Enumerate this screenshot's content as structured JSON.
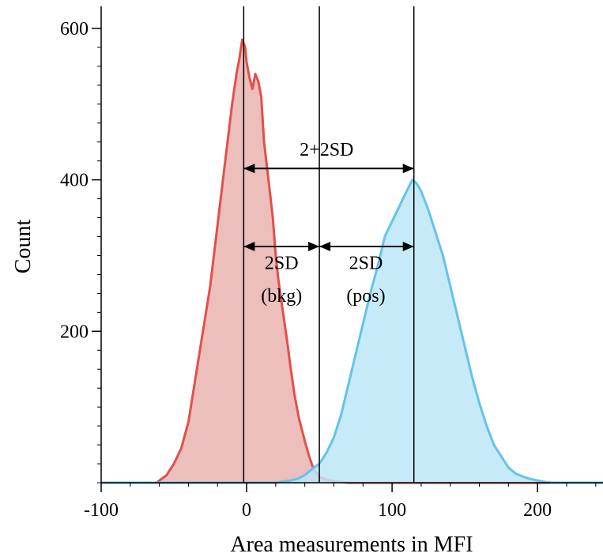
{
  "chart_data": {
    "type": "area",
    "xlabel": "Area measurements in MFI",
    "ylabel": "Count",
    "xlim": [
      -100,
      245
    ],
    "ylim": [
      0,
      625
    ],
    "x_ticks": [
      -100,
      0,
      100,
      200
    ],
    "x_tick_labels": [
      "-100",
      "0",
      "100",
      "200"
    ],
    "y_ticks": [
      200,
      400,
      600
    ],
    "y_tick_labels": [
      "200",
      "400",
      "600"
    ],
    "grid": false,
    "series": [
      {
        "color": "#e2504a",
        "fill": "#e9b3b0",
        "x": [
          -100,
          -62,
          -55,
          -50,
          -45,
          -40,
          -35,
          -30,
          -25,
          -20,
          -15,
          -10,
          -7,
          -5,
          -3,
          -1,
          0,
          2,
          4,
          6,
          8,
          10,
          12,
          15,
          18,
          20,
          22,
          25,
          28,
          30,
          33,
          36,
          40,
          43,
          46,
          50,
          55,
          60,
          65,
          70,
          80,
          100,
          245
        ],
        "y": [
          0,
          0,
          10,
          25,
          45,
          80,
          140,
          200,
          260,
          340,
          420,
          500,
          540,
          560,
          585,
          575,
          555,
          535,
          520,
          540,
          530,
          510,
          450,
          400,
          350,
          300,
          265,
          225,
          185,
          155,
          115,
          85,
          55,
          35,
          18,
          8,
          4,
          2,
          1,
          0,
          0,
          0,
          0
        ]
      },
      {
        "color": "#63c3ec",
        "fill": "#bde6f7",
        "x": [
          -100,
          20,
          30,
          35,
          40,
          45,
          50,
          55,
          60,
          65,
          70,
          75,
          80,
          85,
          90,
          95,
          100,
          105,
          110,
          114,
          117,
          120,
          125,
          130,
          135,
          140,
          145,
          150,
          155,
          160,
          165,
          170,
          175,
          180,
          185,
          190,
          195,
          200,
          205,
          210,
          245
        ],
        "y": [
          0,
          0,
          3,
          5,
          10,
          18,
          25,
          40,
          60,
          90,
          130,
          170,
          210,
          250,
          285,
          325,
          345,
          365,
          385,
          400,
          395,
          385,
          360,
          330,
          300,
          260,
          220,
          180,
          140,
          105,
          75,
          50,
          35,
          20,
          12,
          8,
          5,
          3,
          1,
          0,
          0
        ]
      }
    ],
    "vertical_lines": [
      {
        "x": -2
      },
      {
        "x": 50
      },
      {
        "x": 115
      }
    ],
    "annotations": [
      {
        "label": "2+2SD",
        "arrow_from": -2,
        "arrow_to": 115,
        "y": 415,
        "text_x": 55,
        "text_y": 432
      },
      {
        "label": "2SD",
        "arrow_from": -2,
        "arrow_to": 50,
        "y": 312,
        "text_x": 24,
        "text_y": 282
      },
      {
        "label": "(bkg)",
        "arrow_from": null,
        "arrow_to": null,
        "y": null,
        "text_x": 24,
        "text_y": 239
      },
      {
        "label": "2SD",
        "arrow_from": 50,
        "arrow_to": 115,
        "y": 312,
        "text_x": 82,
        "text_y": 282
      },
      {
        "label": "(pos)",
        "arrow_from": null,
        "arrow_to": null,
        "y": null,
        "text_x": 82,
        "text_y": 239
      }
    ]
  }
}
